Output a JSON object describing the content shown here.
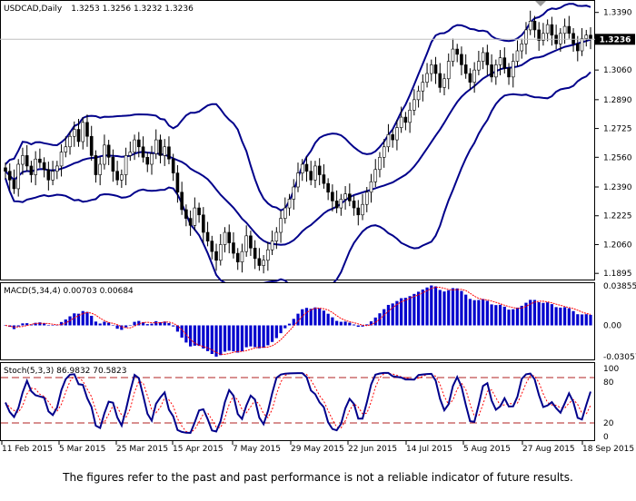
{
  "header": {
    "symbol": "USDCAD,Daily",
    "ohlc": "1.3253 1.3256 1.3232 1.3236",
    "current_price_label": "1.3236"
  },
  "macd_panel": {
    "label": "MACD(5,34,4) 0.00703 0.00684",
    "ticks": [
      "0.03855",
      "0.00",
      "-0.03057"
    ]
  },
  "stoch_panel": {
    "label": "Stoch(5,3,3) 86.9832 70.5823",
    "ticks": [
      "100",
      "80",
      "20",
      "0"
    ]
  },
  "footer": {
    "disclaimer": "The figures refer to the past and past performance is not a reliable indicator of future results."
  },
  "colors": {
    "candle": "#000000",
    "bollinger": "#00008b",
    "macd_hist": "#0000cd",
    "macd_signal": "#ff0000",
    "stoch_main": "#00008b",
    "stoch_signal": "#ff0000",
    "level_line": "#b22222",
    "price_line": "#c0c0c0",
    "frame": "#000000"
  },
  "chart_data": [
    {
      "type": "candlestick",
      "title": "USDCAD,Daily",
      "y_ticks": [
        "1.3390",
        "1.3060",
        "1.2890",
        "1.2725",
        "1.2560",
        "1.2390",
        "1.2225",
        "1.2060",
        "1.1895"
      ],
      "ylim": [
        1.187,
        1.343
      ],
      "x_labels": [
        "11 Feb 2015",
        "5 Mar 2015",
        "25 Mar 2015",
        "15 Apr 2015",
        "7 May 2015",
        "29 May 2015",
        "22 Jun 2015",
        "14 Jul 2015",
        "5 Aug 2015",
        "27 Aug 2015",
        "18 Sep 2015"
      ],
      "indicators": [
        "Bollinger Bands (upper, middle, lower)"
      ],
      "close_series": [
        1.248,
        1.243,
        1.238,
        1.252,
        1.257,
        1.251,
        1.246,
        1.255,
        1.253,
        1.249,
        1.243,
        1.248,
        1.251,
        1.259,
        1.262,
        1.268,
        1.272,
        1.265,
        1.276,
        1.268,
        1.257,
        1.246,
        1.252,
        1.263,
        1.256,
        1.248,
        1.243,
        1.246,
        1.257,
        1.259,
        1.266,
        1.262,
        1.256,
        1.252,
        1.258,
        1.266,
        1.257,
        1.262,
        1.255,
        1.247,
        1.236,
        1.226,
        1.221,
        1.217,
        1.227,
        1.223,
        1.213,
        1.208,
        1.202,
        1.197,
        1.206,
        1.213,
        1.207,
        1.201,
        1.196,
        1.202,
        1.211,
        1.204,
        1.198,
        1.194,
        1.197,
        1.203,
        1.208,
        1.213,
        1.221,
        1.227,
        1.232,
        1.239,
        1.247,
        1.252,
        1.248,
        1.243,
        1.251,
        1.246,
        1.241,
        1.236,
        1.231,
        1.227,
        1.232,
        1.235,
        1.231,
        1.227,
        1.223,
        1.229,
        1.236,
        1.242,
        1.249,
        1.256,
        1.262,
        1.269,
        1.266,
        1.273,
        1.279,
        1.276,
        1.283,
        1.289,
        1.294,
        1.299,
        1.304,
        1.309,
        1.304,
        1.296,
        1.301,
        1.311,
        1.318,
        1.315,
        1.309,
        1.304,
        1.299,
        1.306,
        1.311,
        1.316,
        1.309,
        1.302,
        1.309,
        1.313,
        1.307,
        1.302,
        1.311,
        1.317,
        1.321,
        1.329,
        1.334,
        1.329,
        1.323,
        1.327,
        1.332,
        1.326,
        1.321,
        1.327,
        1.331,
        1.327,
        1.321,
        1.317,
        1.324,
        1.326,
        1.324
      ]
    },
    {
      "type": "bar",
      "title": "MACD(5,34,4)",
      "values_last": {
        "macd": 0.00703,
        "signal": 0.00684
      },
      "ylim": [
        -0.03057,
        0.03855
      ]
    },
    {
      "type": "line",
      "title": "Stoch(5,3,3)",
      "values_last": {
        "main": 86.9832,
        "signal": 70.5823
      },
      "levels": [
        20,
        80
      ],
      "ylim": [
        0,
        100
      ]
    }
  ]
}
